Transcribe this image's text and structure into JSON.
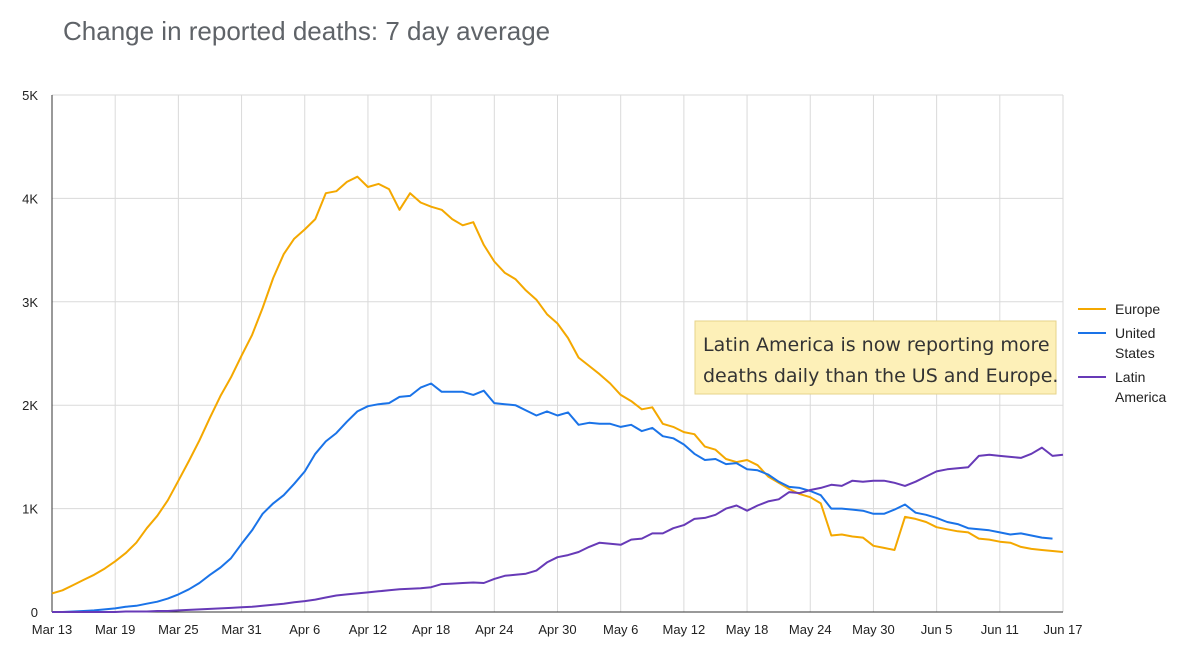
{
  "chart_data": {
    "type": "line",
    "title": "Change in reported deaths: 7 day average",
    "x_tick_labels": [
      "Mar 13",
      "Mar 19",
      "Mar 25",
      "Mar 31",
      "Apr 6",
      "Apr 12",
      "Apr 18",
      "Apr 24",
      "Apr 30",
      "May 6",
      "May 12",
      "May 18",
      "May 24",
      "May 30",
      "Jun 5",
      "Jun 11",
      "Jun 17"
    ],
    "x_start": "Mar 13",
    "x_end": "Jun 17",
    "y_tick_labels": [
      "0",
      "1K",
      "2K",
      "3K",
      "4K",
      "5K"
    ],
    "ylim": [
      0,
      5000
    ],
    "grid": true,
    "legend_position": "right",
    "annotation": {
      "line1": "Latin America is now reporting more",
      "line2": "deaths daily than the US and Europe."
    },
    "series": [
      {
        "name": "Europe",
        "legend_lines": [
          "Europe"
        ],
        "color": "#f4a800",
        "points": [
          [
            0,
            180
          ],
          [
            1,
            210
          ],
          [
            2,
            260
          ],
          [
            3,
            310
          ],
          [
            4,
            360
          ],
          [
            5,
            420
          ],
          [
            6,
            490
          ],
          [
            7,
            570
          ],
          [
            8,
            670
          ],
          [
            9,
            810
          ],
          [
            10,
            930
          ],
          [
            11,
            1080
          ],
          [
            12,
            1270
          ],
          [
            13,
            1460
          ],
          [
            14,
            1660
          ],
          [
            15,
            1880
          ],
          [
            16,
            2090
          ],
          [
            17,
            2270
          ],
          [
            18,
            2480
          ],
          [
            19,
            2680
          ],
          [
            20,
            2940
          ],
          [
            21,
            3230
          ],
          [
            22,
            3460
          ],
          [
            23,
            3610
          ],
          [
            24,
            3700
          ],
          [
            25,
            3800
          ],
          [
            26,
            4050
          ],
          [
            27,
            4070
          ],
          [
            28,
            4160
          ],
          [
            29,
            4210
          ],
          [
            30,
            4110
          ],
          [
            31,
            4140
          ],
          [
            32,
            4090
          ],
          [
            33,
            3890
          ],
          [
            34,
            4050
          ],
          [
            35,
            3960
          ],
          [
            36,
            3920
          ],
          [
            37,
            3890
          ],
          [
            38,
            3800
          ],
          [
            39,
            3740
          ],
          [
            40,
            3770
          ],
          [
            41,
            3550
          ],
          [
            42,
            3390
          ],
          [
            43,
            3280
          ],
          [
            44,
            3220
          ],
          [
            45,
            3110
          ],
          [
            46,
            3020
          ],
          [
            47,
            2880
          ],
          [
            48,
            2790
          ],
          [
            49,
            2650
          ],
          [
            50,
            2460
          ],
          [
            51,
            2380
          ],
          [
            52,
            2300
          ],
          [
            53,
            2210
          ],
          [
            54,
            2100
          ],
          [
            55,
            2040
          ],
          [
            56,
            1960
          ],
          [
            57,
            1980
          ],
          [
            58,
            1820
          ],
          [
            59,
            1790
          ],
          [
            60,
            1740
          ],
          [
            61,
            1720
          ],
          [
            62,
            1600
          ],
          [
            63,
            1570
          ],
          [
            64,
            1480
          ],
          [
            65,
            1450
          ],
          [
            66,
            1470
          ],
          [
            67,
            1420
          ],
          [
            68,
            1310
          ],
          [
            69,
            1250
          ],
          [
            70,
            1190
          ],
          [
            71,
            1140
          ],
          [
            72,
            1110
          ],
          [
            73,
            1050
          ],
          [
            74,
            740
          ],
          [
            75,
            750
          ],
          [
            76,
            730
          ],
          [
            77,
            720
          ],
          [
            78,
            640
          ],
          [
            79,
            620
          ],
          [
            80,
            600
          ],
          [
            81,
            920
          ],
          [
            82,
            900
          ],
          [
            83,
            870
          ],
          [
            84,
            820
          ],
          [
            85,
            800
          ],
          [
            86,
            780
          ],
          [
            87,
            770
          ],
          [
            88,
            710
          ],
          [
            89,
            700
          ],
          [
            90,
            680
          ],
          [
            91,
            670
          ],
          [
            92,
            630
          ],
          [
            93,
            610
          ],
          [
            94,
            600
          ],
          [
            95,
            590
          ],
          [
            96,
            580
          ]
        ]
      },
      {
        "name": "United States",
        "legend_lines": [
          "United",
          "States"
        ],
        "color": "#1a73e8",
        "points": [
          [
            0,
            0
          ],
          [
            1,
            0
          ],
          [
            2,
            5
          ],
          [
            3,
            10
          ],
          [
            4,
            15
          ],
          [
            5,
            25
          ],
          [
            6,
            35
          ],
          [
            7,
            50
          ],
          [
            8,
            60
          ],
          [
            9,
            80
          ],
          [
            10,
            100
          ],
          [
            11,
            130
          ],
          [
            12,
            170
          ],
          [
            13,
            220
          ],
          [
            14,
            280
          ],
          [
            15,
            360
          ],
          [
            16,
            430
          ],
          [
            17,
            520
          ],
          [
            18,
            660
          ],
          [
            19,
            790
          ],
          [
            20,
            950
          ],
          [
            21,
            1050
          ],
          [
            22,
            1130
          ],
          [
            23,
            1240
          ],
          [
            24,
            1360
          ],
          [
            25,
            1530
          ],
          [
            26,
            1650
          ],
          [
            27,
            1730
          ],
          [
            28,
            1840
          ],
          [
            29,
            1940
          ],
          [
            30,
            1990
          ],
          [
            31,
            2010
          ],
          [
            32,
            2020
          ],
          [
            33,
            2080
          ],
          [
            34,
            2090
          ],
          [
            35,
            2170
          ],
          [
            36,
            2210
          ],
          [
            37,
            2130
          ],
          [
            38,
            2130
          ],
          [
            39,
            2130
          ],
          [
            40,
            2100
          ],
          [
            41,
            2140
          ],
          [
            42,
            2020
          ],
          [
            43,
            2010
          ],
          [
            44,
            2000
          ],
          [
            45,
            1950
          ],
          [
            46,
            1900
          ],
          [
            47,
            1940
          ],
          [
            48,
            1900
          ],
          [
            49,
            1930
          ],
          [
            50,
            1810
          ],
          [
            51,
            1830
          ],
          [
            52,
            1820
          ],
          [
            53,
            1820
          ],
          [
            54,
            1790
          ],
          [
            55,
            1810
          ],
          [
            56,
            1750
          ],
          [
            57,
            1780
          ],
          [
            58,
            1700
          ],
          [
            59,
            1680
          ],
          [
            60,
            1620
          ],
          [
            61,
            1530
          ],
          [
            62,
            1470
          ],
          [
            63,
            1480
          ],
          [
            64,
            1430
          ],
          [
            65,
            1440
          ],
          [
            66,
            1380
          ],
          [
            67,
            1370
          ],
          [
            68,
            1330
          ],
          [
            69,
            1260
          ],
          [
            70,
            1210
          ],
          [
            71,
            1200
          ],
          [
            72,
            1170
          ],
          [
            73,
            1130
          ],
          [
            74,
            1000
          ],
          [
            75,
            1000
          ],
          [
            76,
            990
          ],
          [
            77,
            980
          ],
          [
            78,
            950
          ],
          [
            79,
            950
          ],
          [
            80,
            990
          ],
          [
            81,
            1040
          ],
          [
            82,
            960
          ],
          [
            83,
            940
          ],
          [
            84,
            910
          ],
          [
            85,
            870
          ],
          [
            86,
            850
          ],
          [
            87,
            810
          ],
          [
            88,
            800
          ],
          [
            89,
            790
          ],
          [
            90,
            770
          ],
          [
            91,
            750
          ],
          [
            92,
            760
          ],
          [
            93,
            740
          ],
          [
            94,
            720
          ],
          [
            95,
            710
          ]
        ]
      },
      {
        "name": "Latin America",
        "legend_lines": [
          "Latin",
          "America"
        ],
        "color": "#673ab7",
        "points": [
          [
            0,
            0
          ],
          [
            1,
            0
          ],
          [
            2,
            0
          ],
          [
            3,
            0
          ],
          [
            4,
            0
          ],
          [
            5,
            0
          ],
          [
            6,
            0
          ],
          [
            7,
            5
          ],
          [
            8,
            5
          ],
          [
            9,
            5
          ],
          [
            10,
            10
          ],
          [
            11,
            10
          ],
          [
            12,
            15
          ],
          [
            13,
            20
          ],
          [
            14,
            25
          ],
          [
            15,
            30
          ],
          [
            16,
            35
          ],
          [
            17,
            40
          ],
          [
            18,
            45
          ],
          [
            19,
            50
          ],
          [
            20,
            60
          ],
          [
            21,
            70
          ],
          [
            22,
            80
          ],
          [
            23,
            95
          ],
          [
            24,
            105
          ],
          [
            25,
            120
          ],
          [
            26,
            140
          ],
          [
            27,
            160
          ],
          [
            28,
            170
          ],
          [
            29,
            180
          ],
          [
            30,
            190
          ],
          [
            31,
            200
          ],
          [
            32,
            210
          ],
          [
            33,
            220
          ],
          [
            34,
            225
          ],
          [
            35,
            230
          ],
          [
            36,
            240
          ],
          [
            37,
            270
          ],
          [
            38,
            275
          ],
          [
            39,
            280
          ],
          [
            40,
            285
          ],
          [
            41,
            280
          ],
          [
            42,
            320
          ],
          [
            43,
            350
          ],
          [
            44,
            360
          ],
          [
            45,
            370
          ],
          [
            46,
            400
          ],
          [
            47,
            480
          ],
          [
            48,
            530
          ],
          [
            49,
            550
          ],
          [
            50,
            580
          ],
          [
            51,
            630
          ],
          [
            52,
            670
          ],
          [
            53,
            660
          ],
          [
            54,
            650
          ],
          [
            55,
            700
          ],
          [
            56,
            710
          ],
          [
            57,
            760
          ],
          [
            58,
            760
          ],
          [
            59,
            810
          ],
          [
            60,
            840
          ],
          [
            61,
            900
          ],
          [
            62,
            910
          ],
          [
            63,
            940
          ],
          [
            64,
            1000
          ],
          [
            65,
            1030
          ],
          [
            66,
            980
          ],
          [
            67,
            1030
          ],
          [
            68,
            1070
          ],
          [
            69,
            1090
          ],
          [
            70,
            1160
          ],
          [
            71,
            1150
          ],
          [
            72,
            1180
          ],
          [
            73,
            1200
          ],
          [
            74,
            1230
          ],
          [
            75,
            1220
          ],
          [
            76,
            1270
          ],
          [
            77,
            1260
          ],
          [
            78,
            1270
          ],
          [
            79,
            1270
          ],
          [
            80,
            1250
          ],
          [
            81,
            1220
          ],
          [
            82,
            1260
          ],
          [
            83,
            1310
          ],
          [
            84,
            1360
          ],
          [
            85,
            1380
          ],
          [
            86,
            1390
          ],
          [
            87,
            1400
          ],
          [
            88,
            1510
          ],
          [
            89,
            1520
          ],
          [
            90,
            1510
          ],
          [
            91,
            1500
          ],
          [
            92,
            1490
          ],
          [
            93,
            1530
          ],
          [
            94,
            1590
          ],
          [
            95,
            1510
          ],
          [
            96,
            1520
          ]
        ]
      }
    ]
  }
}
